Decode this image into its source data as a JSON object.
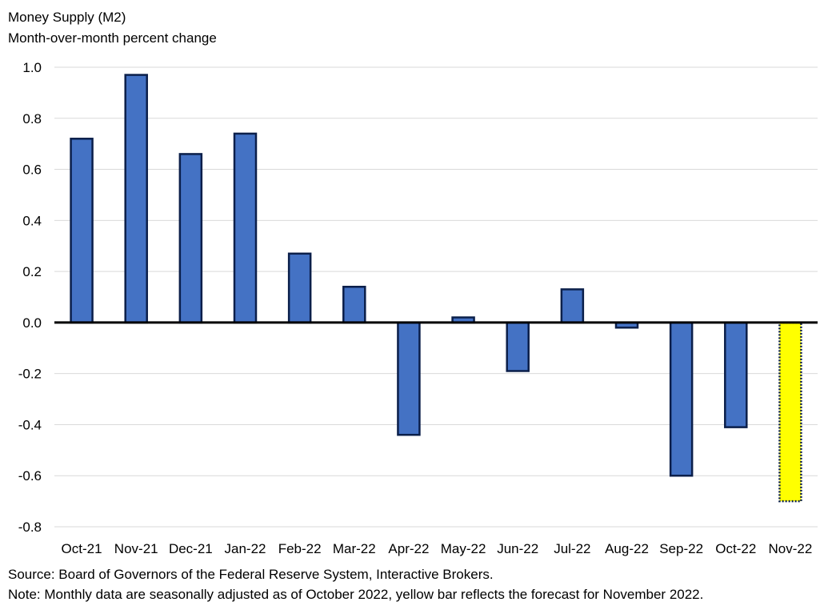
{
  "chart_data": {
    "type": "bar",
    "title": "Money Supply (M2)",
    "subtitle": "Month-over-month percent change",
    "xlabel": "",
    "ylabel": "",
    "categories": [
      "Oct-21",
      "Nov-21",
      "Dec-21",
      "Jan-22",
      "Feb-22",
      "Mar-22",
      "Apr-22",
      "May-22",
      "Jun-22",
      "Jul-22",
      "Aug-22",
      "Sep-22",
      "Oct-22",
      "Nov-22"
    ],
    "values": [
      0.72,
      0.97,
      0.66,
      0.74,
      0.27,
      0.14,
      -0.44,
      0.02,
      -0.19,
      0.13,
      -0.02,
      -0.6,
      -0.41,
      -0.7
    ],
    "forecast_index": 13,
    "ylim": [
      -0.8,
      1.0
    ],
    "yticks": [
      1.0,
      0.8,
      0.6,
      0.4,
      0.2,
      0.0,
      -0.2,
      -0.4,
      -0.6,
      -0.8
    ],
    "ytick_labels": [
      "1.0",
      "0.8",
      "0.6",
      "0.4",
      "0.2",
      "0.0",
      "-0.2",
      "-0.4",
      "-0.6",
      "-0.8"
    ],
    "grid": true,
    "colors": {
      "bar": "#4472C4",
      "bar_outline": "#0B1F4A",
      "forecast_bar": "#FFFF00",
      "grid": "#D9D9D9",
      "zero_line": "#000000"
    }
  },
  "notes": {
    "source": "Source: Board of Governors of the Federal Reserve System, Interactive Brokers.",
    "note": "Note: Monthly data are seasonally adjusted as of October 2022, yellow bar reflects the forecast for November 2022."
  }
}
